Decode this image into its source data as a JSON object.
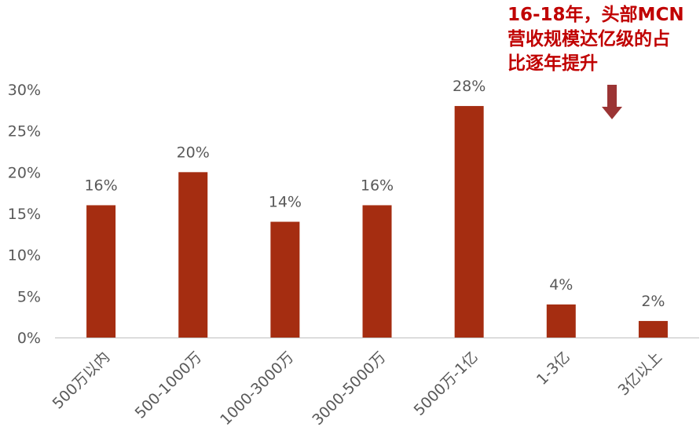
{
  "chart_data": {
    "type": "bar",
    "categories": [
      "500万以内",
      "500-1000万",
      "1000-3000万",
      "3000-5000万",
      "5000万-1亿",
      "1-3亿",
      "3亿以上"
    ],
    "values": [
      16,
      20,
      14,
      16,
      28,
      4,
      2
    ],
    "data_labels": [
      "16%",
      "20%",
      "14%",
      "16%",
      "28%",
      "4%",
      "2%"
    ],
    "y_ticks": [
      0,
      5,
      10,
      15,
      20,
      25,
      30
    ],
    "y_tick_labels": [
      "0%",
      "5%",
      "10%",
      "15%",
      "20%",
      "25%",
      "30%"
    ],
    "ylim": [
      0,
      30
    ],
    "grid": false,
    "legend": "none",
    "bar_color": "#a52d11",
    "label_color": "#595959",
    "axis_color": "#bfbfbf"
  },
  "annotation": {
    "lines": [
      "16-18年，头部MCN",
      "营收规模达亿级的占",
      "比逐年提升"
    ],
    "color": "#c00000",
    "arrow_color": "#9b3434"
  }
}
